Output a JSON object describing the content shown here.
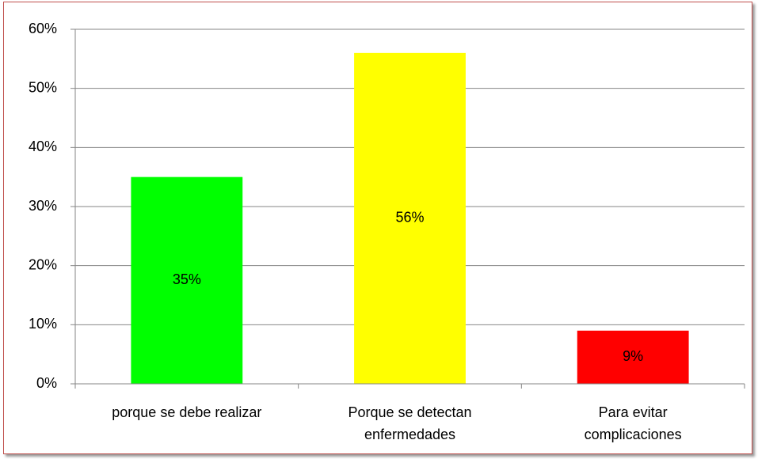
{
  "chart_data": {
    "type": "bar",
    "categories": [
      "porque se debe realizar",
      "Porque se detectan enfermedades",
      "Para evitar complicaciones"
    ],
    "values": [
      35,
      56,
      9
    ],
    "value_labels": [
      "35%",
      "56%",
      "9%"
    ],
    "colors": [
      "#00ff00",
      "#ffff00",
      "#ff0000"
    ],
    "ylim": [
      0,
      60
    ],
    "yticks": [
      {
        "value": 0,
        "label": "0%"
      },
      {
        "value": 10,
        "label": "10%"
      },
      {
        "value": 20,
        "label": "20%"
      },
      {
        "value": 30,
        "label": "30%"
      },
      {
        "value": 40,
        "label": "40%"
      },
      {
        "value": 50,
        "label": "50%"
      },
      {
        "value": 60,
        "label": "60%"
      }
    ],
    "grid": true
  }
}
